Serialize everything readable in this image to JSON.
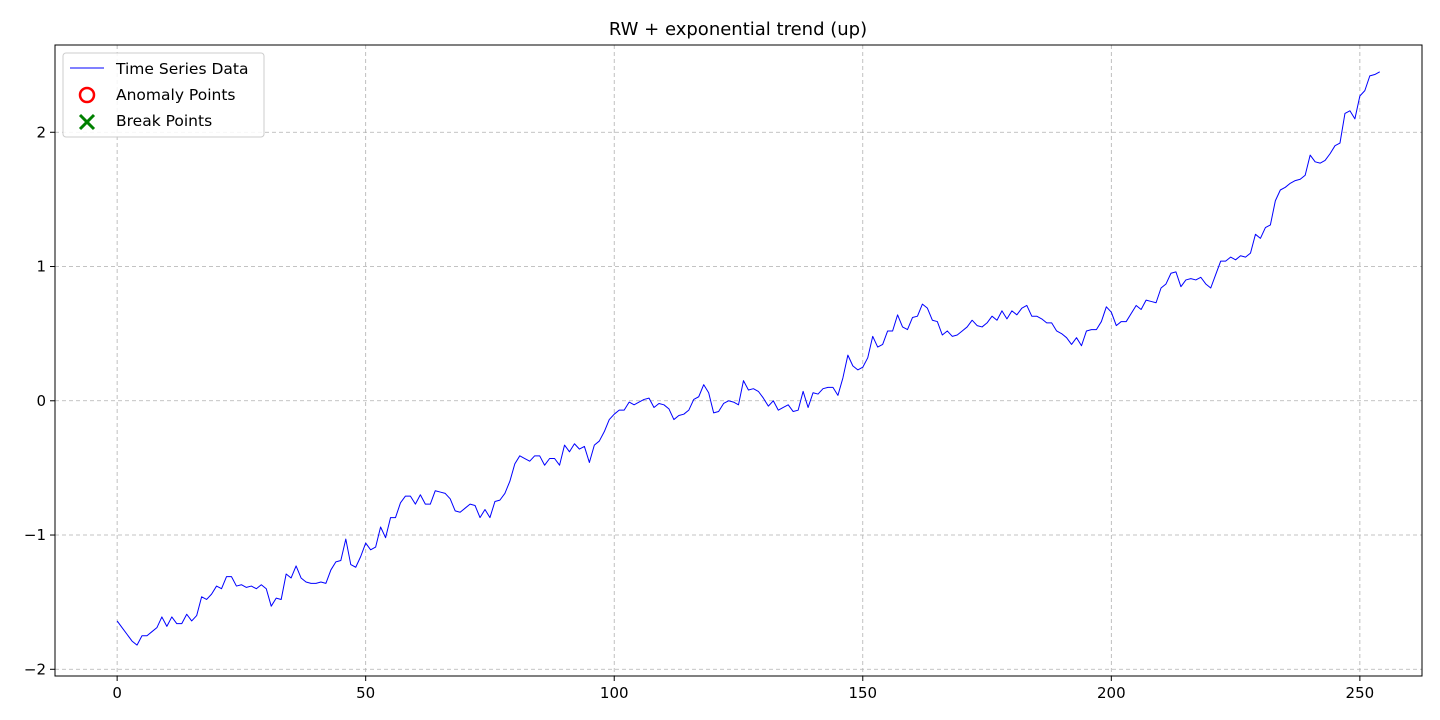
{
  "chart_data": {
    "type": "line",
    "title": "RW + exponential trend (up)",
    "xlabel": "",
    "ylabel": "",
    "xlim": [
      -12.5,
      262.5
    ],
    "ylim": [
      -2.05,
      2.65
    ],
    "x_ticks": [
      0,
      50,
      100,
      150,
      200,
      250
    ],
    "y_ticks": [
      -2,
      -1,
      0,
      1,
      2
    ],
    "x_tick_labels": [
      "0",
      "50",
      "100",
      "150",
      "200",
      "250"
    ],
    "y_tick_labels": [
      "−2",
      "−1",
      "0",
      "1",
      "2"
    ],
    "grid": true,
    "legend_position": "top-left",
    "legend": [
      {
        "label": "Time Series Data",
        "marker": "line",
        "color": "#0000ff"
      },
      {
        "label": "Anomaly Points",
        "marker": "circle",
        "color": "#ff0000"
      },
      {
        "label": "Break Points",
        "marker": "x",
        "color": "#008000"
      }
    ],
    "series": [
      {
        "name": "Time Series Data",
        "color": "#0000ff",
        "x_start": 0,
        "x_step": 1,
        "values": [
          -1.64,
          -1.69,
          -1.74,
          -1.79,
          -1.82,
          -1.75,
          -1.75,
          -1.72,
          -1.69,
          -1.61,
          -1.68,
          -1.61,
          -1.66,
          -1.66,
          -1.59,
          -1.64,
          -1.6,
          -1.46,
          -1.48,
          -1.44,
          -1.38,
          -1.4,
          -1.31,
          -1.31,
          -1.38,
          -1.37,
          -1.39,
          -1.38,
          -1.4,
          -1.37,
          -1.4,
          -1.53,
          -1.47,
          -1.48,
          -1.29,
          -1.32,
          -1.23,
          -1.32,
          -1.35,
          -1.36,
          -1.36,
          -1.35,
          -1.36,
          -1.26,
          -1.2,
          -1.19,
          -1.03,
          -1.22,
          -1.24,
          -1.16,
          -1.06,
          -1.11,
          -1.09,
          -0.94,
          -1.02,
          -0.87,
          -0.87,
          -0.76,
          -0.71,
          -0.71,
          -0.77,
          -0.7,
          -0.77,
          -0.77,
          -0.67,
          -0.68,
          -0.69,
          -0.73,
          -0.82,
          -0.83,
          -0.8,
          -0.77,
          -0.78,
          -0.87,
          -0.81,
          -0.87,
          -0.75,
          -0.74,
          -0.69,
          -0.6,
          -0.47,
          -0.41,
          -0.43,
          -0.45,
          -0.41,
          -0.41,
          -0.48,
          -0.43,
          -0.43,
          -0.48,
          -0.33,
          -0.38,
          -0.32,
          -0.36,
          -0.34,
          -0.46,
          -0.33,
          -0.3,
          -0.23,
          -0.14,
          -0.1,
          -0.07,
          -0.07,
          -0.01,
          -0.03,
          -0.01,
          0.01,
          0.02,
          -0.05,
          -0.02,
          -0.03,
          -0.06,
          -0.14,
          -0.11,
          -0.1,
          -0.07,
          0.01,
          0.03,
          0.12,
          0.06,
          -0.09,
          -0.08,
          -0.02,
          0.0,
          -0.01,
          -0.03,
          0.15,
          0.08,
          0.09,
          0.07,
          0.02,
          -0.04,
          0.0,
          -0.07,
          -0.05,
          -0.03,
          -0.08,
          -0.07,
          0.07,
          -0.05,
          0.06,
          0.05,
          0.09,
          0.1,
          0.1,
          0.04,
          0.17,
          0.34,
          0.26,
          0.23,
          0.25,
          0.32,
          0.48,
          0.4,
          0.42,
          0.52,
          0.52,
          0.64,
          0.55,
          0.53,
          0.62,
          0.63,
          0.72,
          0.69,
          0.6,
          0.59,
          0.49,
          0.52,
          0.48,
          0.49,
          0.52,
          0.55,
          0.6,
          0.56,
          0.55,
          0.58,
          0.63,
          0.6,
          0.67,
          0.61,
          0.67,
          0.64,
          0.69,
          0.71,
          0.63,
          0.63,
          0.61,
          0.58,
          0.58,
          0.52,
          0.5,
          0.47,
          0.42,
          0.47,
          0.41,
          0.52,
          0.53,
          0.53,
          0.59,
          0.7,
          0.66,
          0.56,
          0.59,
          0.59,
          0.65,
          0.71,
          0.68,
          0.75,
          0.74,
          0.73,
          0.84,
          0.87,
          0.95,
          0.96,
          0.85,
          0.9,
          0.91,
          0.9,
          0.92,
          0.87,
          0.84,
          0.94,
          1.04,
          1.04,
          1.07,
          1.05,
          1.08,
          1.07,
          1.1,
          1.24,
          1.21,
          1.29,
          1.31,
          1.49,
          1.57,
          1.59,
          1.62,
          1.64,
          1.65,
          1.68,
          1.83,
          1.78,
          1.77,
          1.79,
          1.84,
          1.9,
          1.92,
          2.14,
          2.16,
          2.1,
          2.27,
          2.31,
          2.42,
          2.43,
          2.45
        ]
      }
    ],
    "anomaly_points": [],
    "break_points": []
  }
}
